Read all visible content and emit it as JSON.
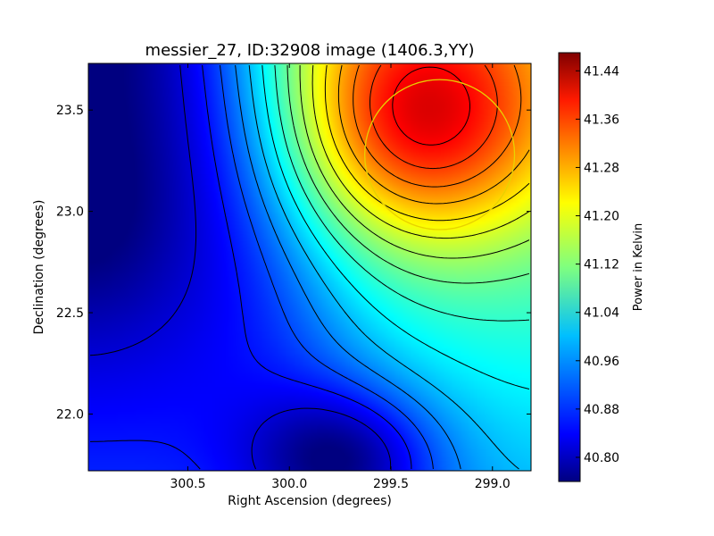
{
  "chart_data": {
    "type": "heatmap",
    "title": "messier_27, ID:32908 image (1406.3,YY)",
    "xlabel": "Right Ascension (degrees)",
    "ylabel": "Declination (degrees)",
    "xlim": [
      300.99,
      298.81
    ],
    "ylim": [
      21.72,
      23.73
    ],
    "x_inverted": true,
    "x_ticks": [
      300.5,
      300.0,
      299.5,
      299.0
    ],
    "x_tick_labels": [
      "300.5",
      "300.0",
      "299.5",
      "299.0"
    ],
    "y_ticks": [
      22.0,
      22.5,
      23.0,
      23.5
    ],
    "y_tick_labels": [
      "22.0",
      "22.5",
      "23.0",
      "23.5"
    ],
    "colormap": "jet",
    "colorbar": {
      "label": "Power in Kelvin",
      "range": [
        40.76,
        41.47
      ],
      "ticks": [
        40.8,
        40.88,
        40.96,
        41.04,
        41.12,
        41.2,
        41.28,
        41.36,
        41.44
      ],
      "tick_labels": [
        "40.80",
        "40.88",
        "40.96",
        "41.04",
        "41.12",
        "41.20",
        "41.28",
        "41.36",
        "41.44"
      ]
    },
    "field_peaks": {
      "high": {
        "ra": 299.35,
        "dec": 23.45,
        "value": 41.45
      },
      "low": {
        "ra": 299.72,
        "dec": 21.78,
        "value": 40.78
      }
    },
    "contour_lines": "black",
    "marker_circle": {
      "ra": 299.26,
      "dec": 23.28,
      "radius_deg": 0.37,
      "color": "#e8d200"
    }
  }
}
